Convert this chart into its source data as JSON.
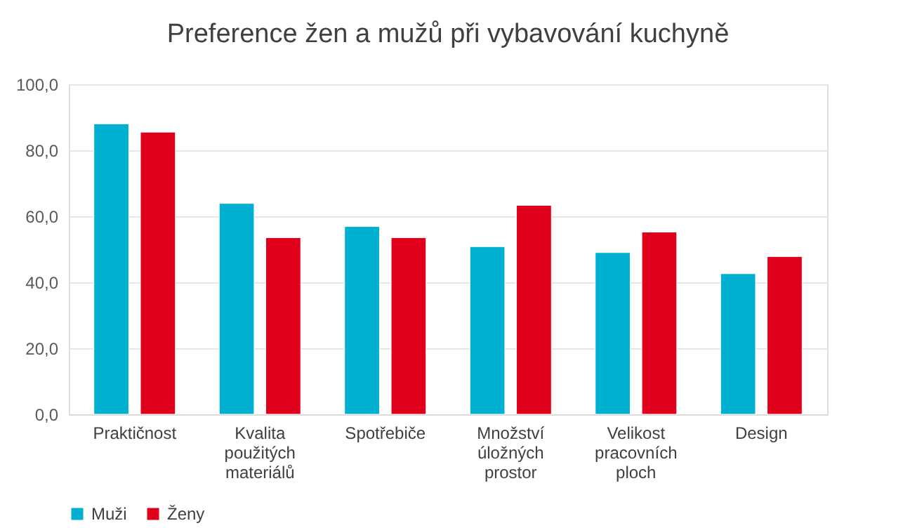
{
  "chart_data": {
    "type": "bar",
    "title": "Preference žen a mužů při vybavování kuchyně",
    "categories": [
      "Praktičnost",
      "Kvalita použitých materiálů",
      "Spotřebiče",
      "Množství úložných prostor",
      "Velikost pracovních ploch",
      "Design"
    ],
    "series": [
      {
        "name": "Muži",
        "color": "#00b0d0",
        "values": [
          88.0,
          63.9,
          56.9,
          50.8,
          49.0,
          42.6
        ]
      },
      {
        "name": "Ženy",
        "color": "#e0001b",
        "values": [
          85.5,
          53.5,
          53.5,
          63.3,
          55.2,
          47.8
        ]
      }
    ],
    "ylim": [
      0,
      100
    ],
    "yticks": [
      {
        "value": 0,
        "label": "0,0"
      },
      {
        "value": 20,
        "label": "20,0"
      },
      {
        "value": 40,
        "label": "40,0"
      },
      {
        "value": 60,
        "label": "60,0"
      },
      {
        "value": 80,
        "label": "80,0"
      },
      {
        "value": 100,
        "label": "100,0"
      }
    ],
    "grid": "y",
    "legend": "bottom"
  }
}
